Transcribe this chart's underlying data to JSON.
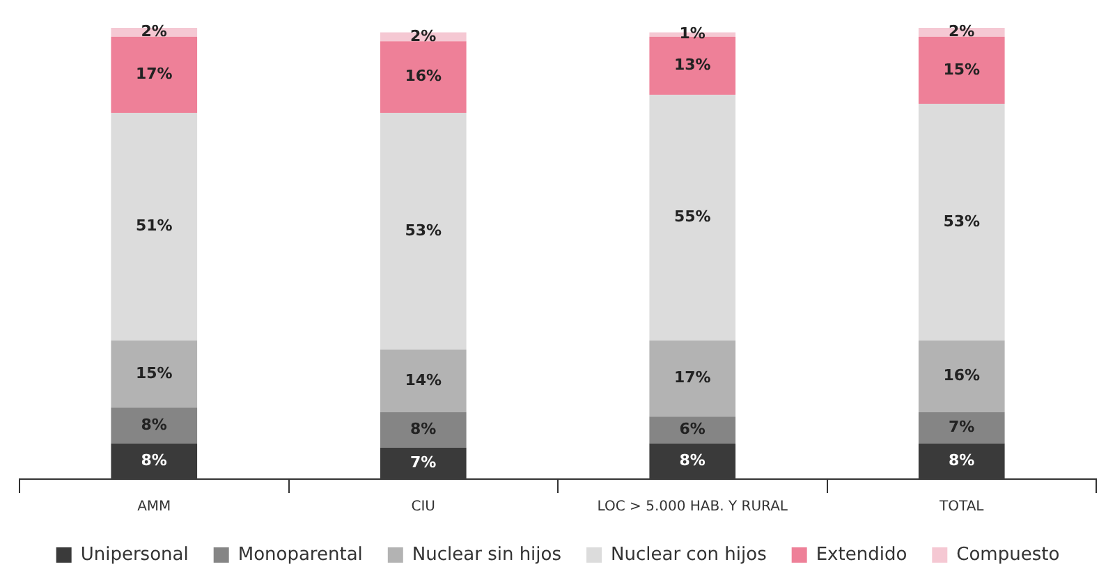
{
  "chart_data": {
    "type": "bar",
    "stacked": true,
    "categories": [
      "AMM",
      "CIU",
      "LOC > 5.000 HAB. Y RURAL",
      "TOTAL"
    ],
    "series": [
      {
        "name": "Unipersonal",
        "color": "#3a3a3a",
        "values": [
          8,
          7,
          8,
          8
        ],
        "value_labels": [
          "8%",
          "7%",
          "8%",
          "8%"
        ]
      },
      {
        "name": "Monoparental",
        "color": "#858585",
        "values": [
          8,
          8,
          6,
          7
        ],
        "value_labels": [
          "8%",
          "8%",
          "6%",
          "7%"
        ]
      },
      {
        "name": "Nuclear sin hijos",
        "color": "#b3b3b3",
        "values": [
          15,
          14,
          17,
          16
        ],
        "value_labels": [
          "15%",
          "14%",
          "17%",
          "16%"
        ]
      },
      {
        "name": "Nuclear con hijos",
        "color": "#dcdcdc",
        "values": [
          51,
          53,
          55,
          53
        ],
        "value_labels": [
          "51%",
          "53%",
          "55%",
          "53%"
        ]
      },
      {
        "name": "Extendido",
        "color": "#ee8098",
        "values": [
          17,
          16,
          13,
          15
        ],
        "value_labels": [
          "17%",
          "16%",
          "13%",
          "15%"
        ]
      },
      {
        "name": "Compuesto",
        "color": "#f5c8d3",
        "values": [
          2,
          2,
          1,
          2
        ],
        "value_labels": [
          "2%",
          "2%",
          "1%",
          "2%"
        ]
      }
    ],
    "ylim": [
      0,
      101
    ],
    "tick_labels": "x",
    "grid": false,
    "legend": "bottom"
  }
}
